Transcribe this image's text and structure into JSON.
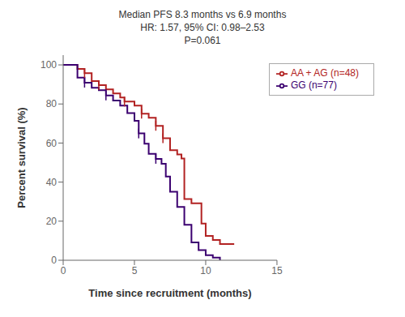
{
  "chart_data": {
    "type": "line",
    "title": "Median PFS 8.3 months vs 6.9 months\nHR: 1.57, 95% CI: 0.98–2.53\nP=0.061",
    "xlabel": "Time since recruitment (months)",
    "ylabel": "Percent survival (%)",
    "xlim": [
      0,
      15
    ],
    "ylim": [
      0,
      105
    ],
    "xticks": [
      0,
      5,
      10,
      15
    ],
    "yticks": [
      0,
      20,
      40,
      60,
      80,
      100
    ],
    "legend": "upper right",
    "line_style": "step",
    "marker": "|",
    "series": [
      {
        "name": "AA + AG (n=48)",
        "color": "#B22222",
        "x": [
          0,
          1.0,
          1.5,
          2.0,
          2.5,
          3.0,
          3.5,
          4.0,
          4.3,
          4.7,
          5.0,
          5.5,
          6.0,
          6.5,
          7.0,
          7.5,
          8.0,
          8.3,
          8.5,
          9.0,
          9.3,
          9.7,
          10.0,
          10.5,
          11.0,
          11.5,
          12.0
        ],
        "values": [
          100,
          97.9,
          95.8,
          91.7,
          89.6,
          87.5,
          85.4,
          83.3,
          81.2,
          81.2,
          79.2,
          75.0,
          72.9,
          68.8,
          62.5,
          56.3,
          54.2,
          52.1,
          31.3,
          29.2,
          29.2,
          18.8,
          12.5,
          10.4,
          8.3,
          8.3,
          8.3
        ],
        "censor_x": [
          1.5,
          2.5,
          4.3,
          5.5,
          6.5,
          7.0
        ],
        "censor_values": [
          95.8,
          89.6,
          81.2,
          75.0,
          68.8,
          62.5
        ]
      },
      {
        "name": "GG (n=77)",
        "color": "#3B0070",
        "x": [
          0,
          1.0,
          1.5,
          2.0,
          2.5,
          3.0,
          3.5,
          4.0,
          4.5,
          5.0,
          5.3,
          5.7,
          6.0,
          6.5,
          6.9,
          7.2,
          7.5,
          8.0,
          8.5,
          9.0,
          9.5,
          10.0,
          10.5,
          11.0
        ],
        "values": [
          100,
          93.5,
          90.9,
          88.3,
          87.0,
          84.4,
          81.8,
          79.2,
          75.3,
          71.4,
          64.9,
          59.7,
          54.5,
          51.9,
          49.4,
          42.9,
          35.1,
          27.3,
          18.2,
          9.1,
          5.2,
          2.6,
          1.3,
          0.0
        ],
        "censor_x": [
          1.5,
          3.0,
          5.3,
          6.5
        ],
        "censor_values": [
          90.9,
          84.4,
          64.9,
          51.9
        ]
      }
    ]
  }
}
